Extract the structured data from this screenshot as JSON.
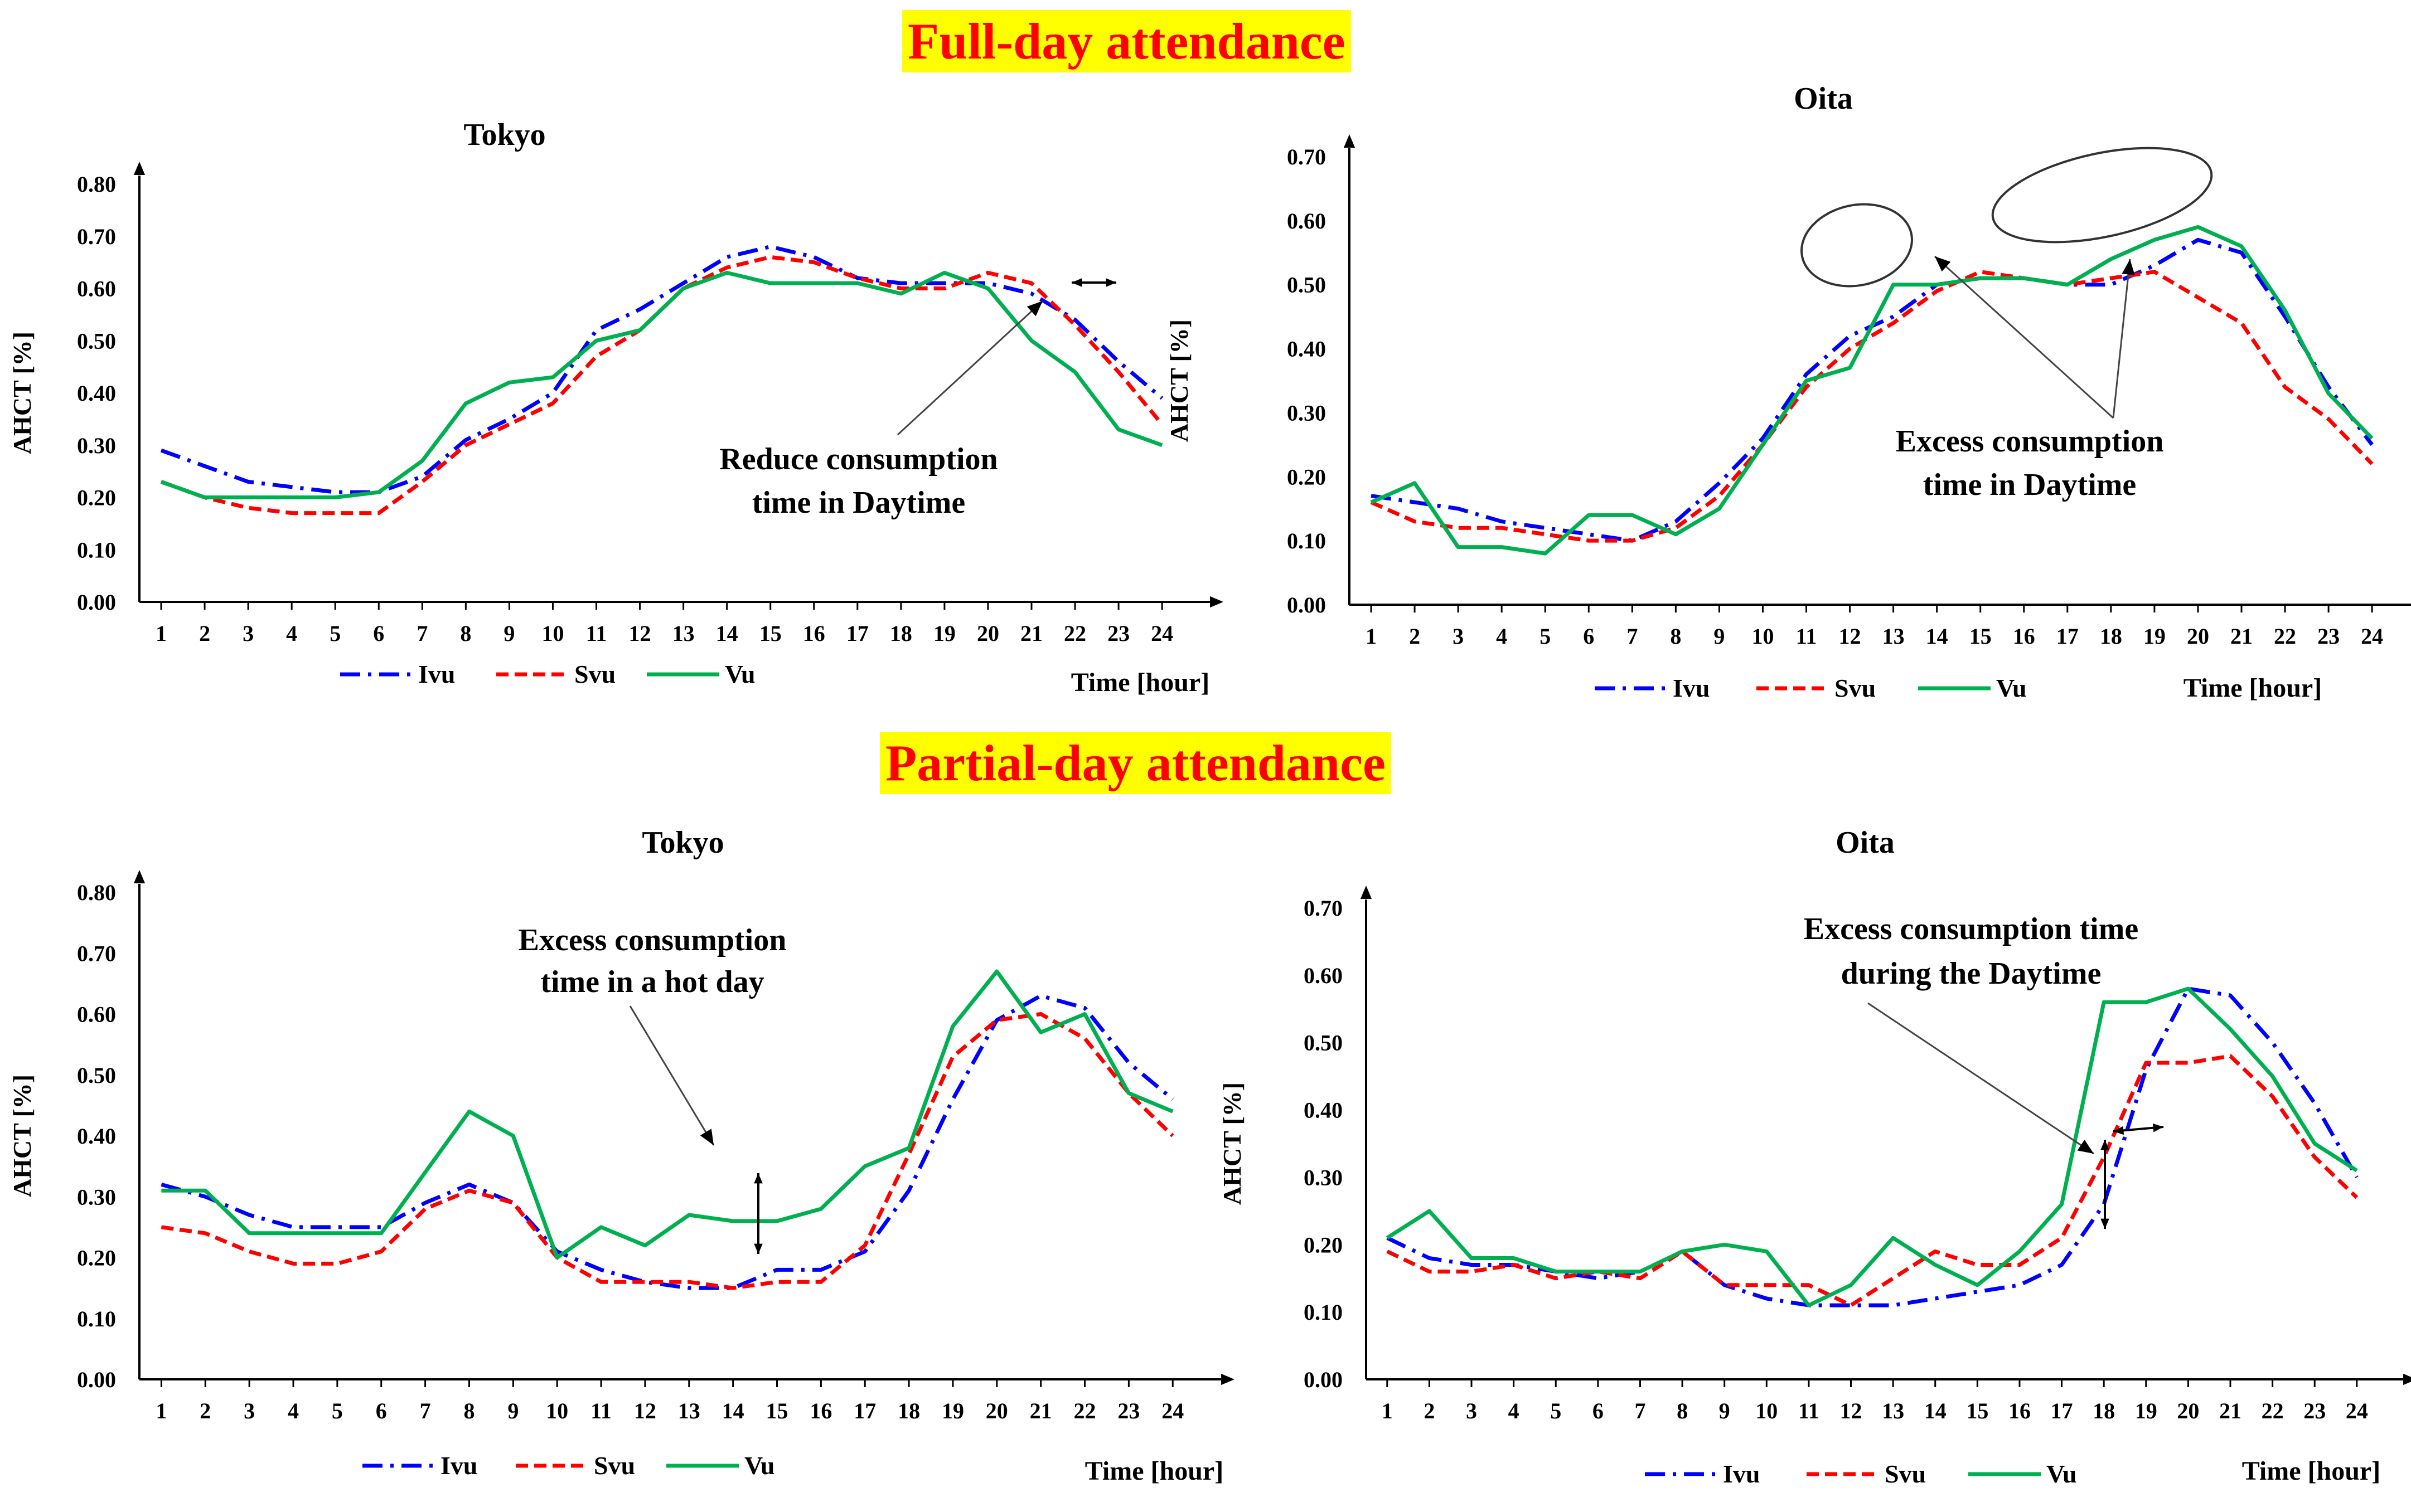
{
  "sections": {
    "full_day": "Full-day attendance",
    "partial_day": "Partial-day attendance"
  },
  "colors": {
    "Ivu": "#0000ff",
    "Svu": "#ff0000",
    "Vu": "#00b050",
    "title_bg": "#ffff00",
    "title_text": "#ff0000"
  },
  "chart_data": [
    {
      "type": "line",
      "section": "Full-day attendance",
      "title": "Tokyo",
      "xlabel": "Time [hour]",
      "ylabel": "AHCT [%]",
      "ylim": [
        0,
        0.8
      ],
      "yticks": [
        "0.00",
        "0.10",
        "0.20",
        "0.30",
        "0.40",
        "0.50",
        "0.60",
        "0.70",
        "0.80"
      ],
      "x": [
        1,
        2,
        3,
        4,
        5,
        6,
        7,
        8,
        9,
        10,
        11,
        12,
        13,
        14,
        15,
        16,
        17,
        18,
        19,
        20,
        21,
        22,
        23,
        24
      ],
      "series": [
        {
          "name": "Ivu",
          "values": [
            0.29,
            0.26,
            0.23,
            0.22,
            0.21,
            0.21,
            0.24,
            0.31,
            0.35,
            0.4,
            0.52,
            0.56,
            0.61,
            0.66,
            0.68,
            0.66,
            0.62,
            0.61,
            0.61,
            0.61,
            0.59,
            0.54,
            0.46,
            0.39
          ]
        },
        {
          "name": "Svu",
          "values": [
            0.23,
            0.2,
            0.18,
            0.17,
            0.17,
            0.17,
            0.23,
            0.3,
            0.34,
            0.38,
            0.47,
            0.52,
            0.6,
            0.64,
            0.66,
            0.65,
            0.62,
            0.6,
            0.6,
            0.63,
            0.61,
            0.53,
            0.44,
            0.34
          ]
        },
        {
          "name": "Vu",
          "values": [
            0.23,
            0.2,
            0.2,
            0.2,
            0.2,
            0.21,
            0.27,
            0.38,
            0.42,
            0.43,
            0.5,
            0.52,
            0.6,
            0.63,
            0.61,
            0.61,
            0.61,
            0.59,
            0.63,
            0.6,
            0.5,
            0.44,
            0.33,
            0.3
          ]
        }
      ],
      "annotations": [
        "Reduce consumption",
        "time in Daytime"
      ],
      "legend": [
        "Ivu",
        "Svu",
        "Vu"
      ]
    },
    {
      "type": "line",
      "section": "Full-day attendance",
      "title": "Oita",
      "xlabel": "Time [hour]",
      "ylabel": "AHCT [%]",
      "ylim": [
        0,
        0.7
      ],
      "yticks": [
        "0.00",
        "0.10",
        "0.20",
        "0.30",
        "0.40",
        "0.50",
        "0.60",
        "0.70"
      ],
      "x": [
        1,
        2,
        3,
        4,
        5,
        6,
        7,
        8,
        9,
        10,
        11,
        12,
        13,
        14,
        15,
        16,
        17,
        18,
        19,
        20,
        21,
        22,
        23,
        24
      ],
      "series": [
        {
          "name": "Ivu",
          "values": [
            0.17,
            0.16,
            0.15,
            0.13,
            0.12,
            0.11,
            0.1,
            0.13,
            0.19,
            0.26,
            0.36,
            0.42,
            0.45,
            0.5,
            0.51,
            0.51,
            0.5,
            0.5,
            0.53,
            0.57,
            0.55,
            0.45,
            0.34,
            0.25
          ]
        },
        {
          "name": "Svu",
          "values": [
            0.16,
            0.13,
            0.12,
            0.12,
            0.11,
            0.1,
            0.1,
            0.12,
            0.17,
            0.25,
            0.34,
            0.4,
            0.44,
            0.49,
            0.52,
            0.51,
            0.5,
            0.51,
            0.52,
            0.48,
            0.44,
            0.34,
            0.29,
            0.22
          ]
        },
        {
          "name": "Vu",
          "values": [
            0.16,
            0.19,
            0.09,
            0.09,
            0.08,
            0.14,
            0.14,
            0.11,
            0.15,
            0.25,
            0.35,
            0.37,
            0.5,
            0.5,
            0.51,
            0.51,
            0.5,
            0.54,
            0.57,
            0.59,
            0.56,
            0.46,
            0.33,
            0.26
          ]
        }
      ],
      "annotations": [
        "Excess consumption",
        "time in Daytime"
      ],
      "legend": [
        "Ivu",
        "Svu",
        "Vu"
      ]
    },
    {
      "type": "line",
      "section": "Partial-day attendance",
      "title": "Tokyo",
      "xlabel": "Time [hour]",
      "ylabel": "AHCT [%]",
      "ylim": [
        0,
        0.8
      ],
      "yticks": [
        "0.00",
        "0.10",
        "0.20",
        "0.30",
        "0.40",
        "0.50",
        "0.60",
        "0.70",
        "0.80"
      ],
      "x": [
        1,
        2,
        3,
        4,
        5,
        6,
        7,
        8,
        9,
        10,
        11,
        12,
        13,
        14,
        15,
        16,
        17,
        18,
        19,
        20,
        21,
        22,
        23,
        24
      ],
      "series": [
        {
          "name": "Ivu",
          "values": [
            0.32,
            0.3,
            0.27,
            0.25,
            0.25,
            0.25,
            0.29,
            0.32,
            0.29,
            0.21,
            0.18,
            0.16,
            0.15,
            0.15,
            0.18,
            0.18,
            0.21,
            0.31,
            0.46,
            0.59,
            0.63,
            0.61,
            0.52,
            0.46
          ]
        },
        {
          "name": "Svu",
          "values": [
            0.25,
            0.24,
            0.21,
            0.19,
            0.19,
            0.21,
            0.28,
            0.31,
            0.29,
            0.2,
            0.16,
            0.16,
            0.16,
            0.15,
            0.16,
            0.16,
            0.22,
            0.37,
            0.53,
            0.59,
            0.6,
            0.56,
            0.47,
            0.4
          ]
        },
        {
          "name": "Vu",
          "values": [
            0.31,
            0.31,
            0.24,
            0.24,
            0.24,
            0.24,
            0.34,
            0.44,
            0.4,
            0.2,
            0.25,
            0.22,
            0.27,
            0.26,
            0.26,
            0.28,
            0.35,
            0.38,
            0.58,
            0.67,
            0.57,
            0.6,
            0.47,
            0.44
          ]
        }
      ],
      "annotations": [
        "Excess consumption",
        "time in a hot day"
      ],
      "legend": [
        "Ivu",
        "Svu",
        "Vu"
      ]
    },
    {
      "type": "line",
      "section": "Partial-day attendance",
      "title": "Oita",
      "xlabel": "Time [hour]",
      "ylabel": "AHCT [%]",
      "ylim": [
        0,
        0.7
      ],
      "yticks": [
        "0.00",
        "0.10",
        "0.20",
        "0.30",
        "0.40",
        "0.50",
        "0.60",
        "0.70"
      ],
      "x": [
        1,
        2,
        3,
        4,
        5,
        6,
        7,
        8,
        9,
        10,
        11,
        12,
        13,
        14,
        15,
        16,
        17,
        18,
        19,
        20,
        21,
        22,
        23,
        24
      ],
      "series": [
        {
          "name": "Ivu",
          "values": [
            0.21,
            0.18,
            0.17,
            0.17,
            0.16,
            0.15,
            0.16,
            0.19,
            0.14,
            0.12,
            0.11,
            0.11,
            0.11,
            0.12,
            0.13,
            0.14,
            0.17,
            0.26,
            0.46,
            0.58,
            0.57,
            0.5,
            0.41,
            0.3
          ]
        },
        {
          "name": "Svu",
          "values": [
            0.19,
            0.16,
            0.16,
            0.17,
            0.15,
            0.16,
            0.15,
            0.19,
            0.14,
            0.14,
            0.14,
            0.11,
            0.15,
            0.19,
            0.17,
            0.17,
            0.21,
            0.33,
            0.47,
            0.47,
            0.48,
            0.42,
            0.33,
            0.27
          ]
        },
        {
          "name": "Vu",
          "values": [
            0.21,
            0.25,
            0.18,
            0.18,
            0.16,
            0.16,
            0.16,
            0.19,
            0.2,
            0.19,
            0.11,
            0.14,
            0.21,
            0.17,
            0.14,
            0.19,
            0.26,
            0.56,
            0.56,
            0.58,
            0.52,
            0.45,
            0.35,
            0.31
          ]
        }
      ],
      "annotations": [
        "Excess consumption time",
        "during the Daytime"
      ],
      "legend": [
        "Ivu",
        "Svu",
        "Vu"
      ]
    }
  ]
}
